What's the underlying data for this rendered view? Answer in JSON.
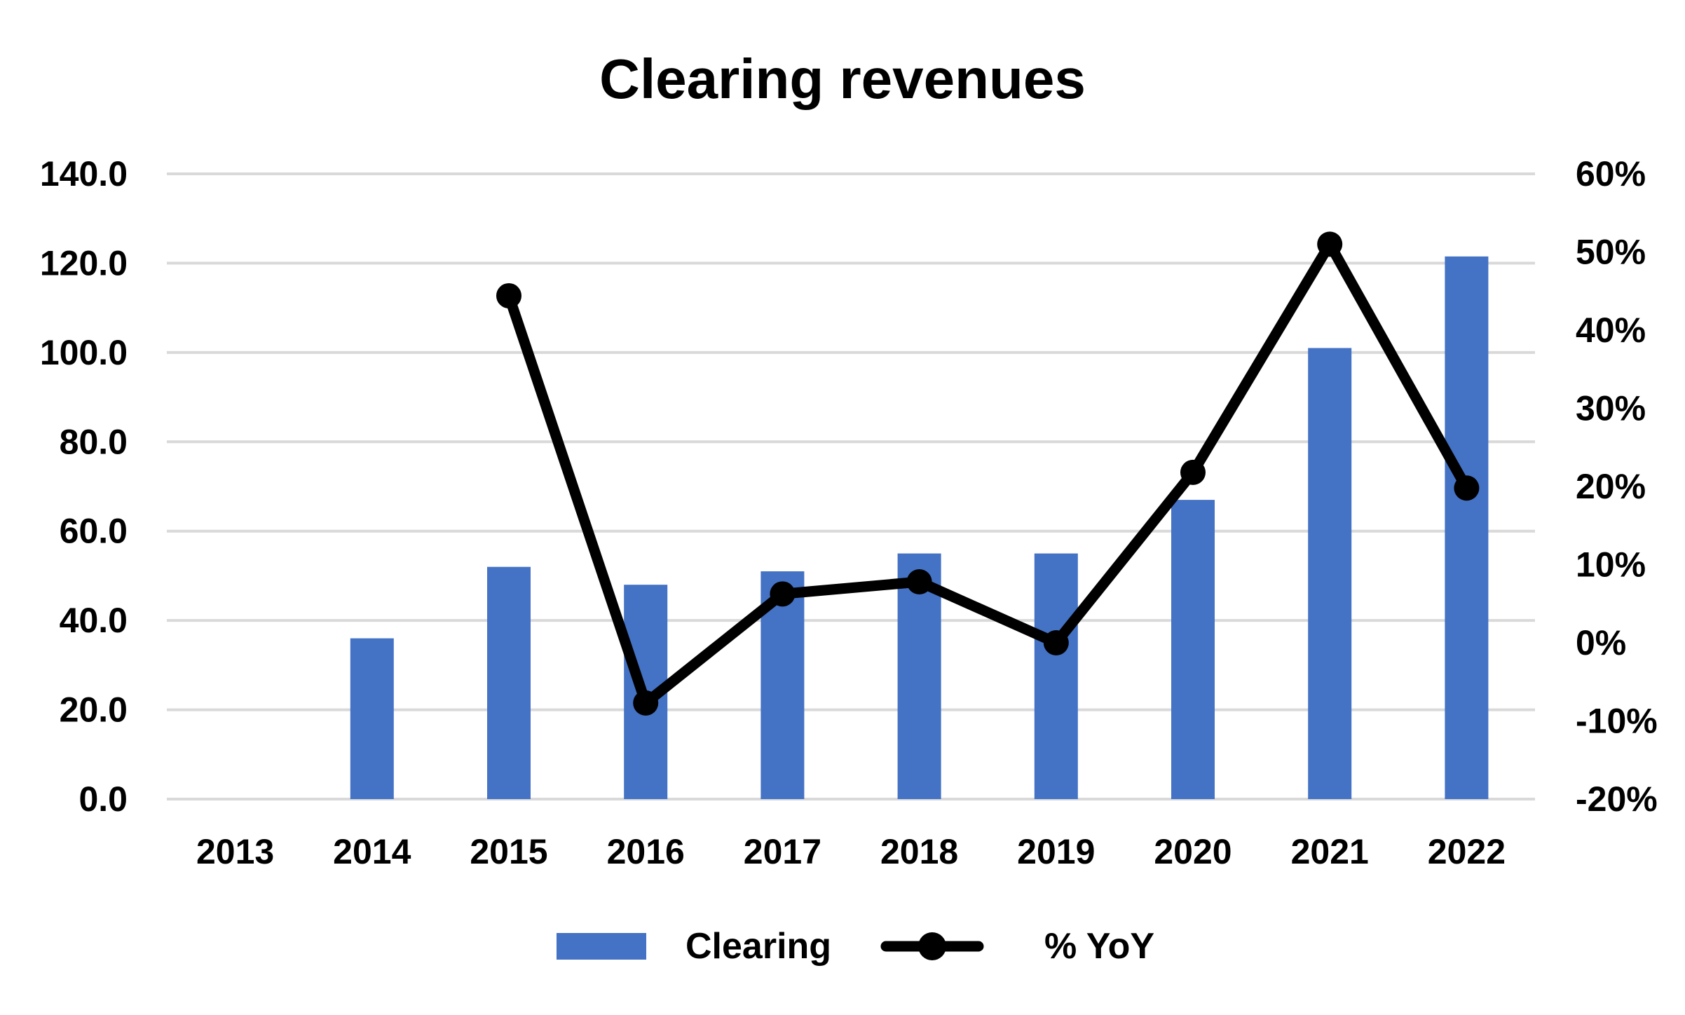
{
  "chart_data": {
    "type": "bar",
    "title": "Clearing revenues",
    "categories": [
      "2013",
      "2014",
      "2015",
      "2016",
      "2017",
      "2018",
      "2019",
      "2020",
      "2021",
      "2022"
    ],
    "series": [
      {
        "name": "Clearing",
        "type": "bar",
        "axis": "left",
        "color": "#4472C4",
        "values": [
          null,
          36.0,
          52.0,
          48.0,
          51.0,
          55.0,
          55.0,
          67.0,
          101.0,
          121.5
        ]
      },
      {
        "name": "% YoY",
        "type": "line",
        "axis": "right",
        "color": "#000000",
        "marker": "circle",
        "values": [
          null,
          null,
          0.444,
          -0.077,
          0.0625,
          0.078,
          0.0,
          0.218,
          0.51,
          0.198
        ]
      }
    ],
    "y_left": {
      "ylim": [
        0,
        140
      ],
      "ticks": [
        "0.0",
        "20.0",
        "40.0",
        "60.0",
        "80.0",
        "100.0",
        "120.0",
        "140.0"
      ]
    },
    "y_right": {
      "ylim": [
        -0.2,
        0.6
      ],
      "ticks": [
        "-20%",
        "-10%",
        "0%",
        "10%",
        "20%",
        "30%",
        "40%",
        "50%",
        "60%"
      ]
    },
    "grid": true,
    "gridline_color": "#D9D9D9",
    "legend_position": "bottom",
    "xlabel": "",
    "ylabel": ""
  }
}
